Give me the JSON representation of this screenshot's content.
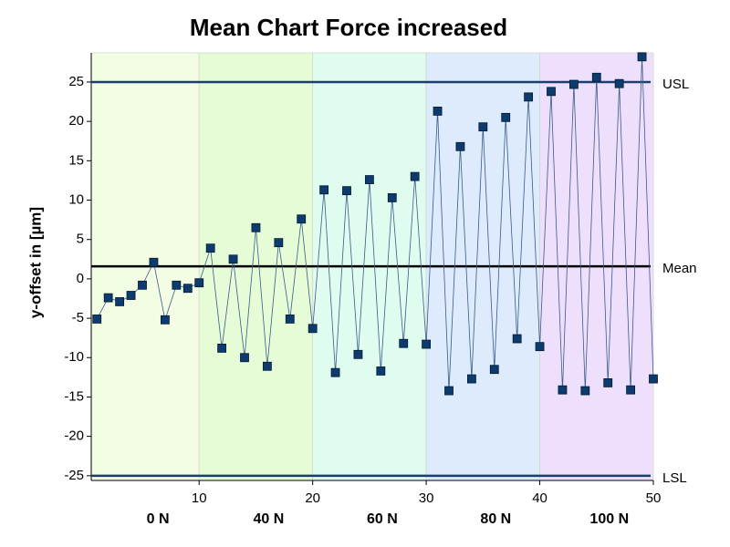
{
  "chart_data": {
    "type": "line",
    "title": "Mean Chart Force increased",
    "y_label": "y-offset  in [µm]",
    "x": [
      1,
      2,
      3,
      4,
      5,
      6,
      7,
      8,
      9,
      10,
      11,
      12,
      13,
      14,
      15,
      16,
      17,
      18,
      19,
      20,
      21,
      22,
      23,
      24,
      25,
      26,
      27,
      28,
      29,
      30,
      31,
      32,
      33,
      34,
      35,
      36,
      37,
      38,
      39,
      40,
      41,
      42,
      43,
      44,
      45,
      46,
      47,
      48,
      49,
      50
    ],
    "values": [
      -5.1,
      -2.4,
      -2.9,
      -2.1,
      -0.8,
      2.1,
      -5.2,
      -0.8,
      -1.2,
      -0.5,
      3.9,
      -8.8,
      2.5,
      -10.0,
      6.5,
      -11.1,
      4.6,
      -5.1,
      7.6,
      -6.3,
      11.3,
      -11.9,
      11.2,
      -9.6,
      12.6,
      -11.7,
      10.3,
      -8.2,
      13.0,
      -8.3,
      21.3,
      -14.2,
      16.8,
      -12.7,
      19.3,
      -11.5,
      20.5,
      -7.6,
      23.1,
      -8.6,
      23.8,
      -14.1,
      24.7,
      -14.2,
      25.6,
      -13.2,
      24.8,
      -14.1,
      28.2,
      -12.7
    ],
    "color": "#0d3b6e",
    "xlim": [
      0.5,
      50
    ],
    "xticks": [
      10,
      20,
      30,
      40,
      50
    ],
    "ylim": [
      -25.6,
      28.7
    ],
    "yticks": [
      -25,
      -20,
      -15,
      -10,
      -5,
      0,
      5,
      10,
      15,
      20,
      25
    ],
    "bands": [
      {
        "label": "0 N",
        "range": [
          0,
          10
        ],
        "color": "#f3fde4"
      },
      {
        "label": "40 N",
        "range": [
          10,
          20
        ],
        "color": "#e6fcd6"
      },
      {
        "label": "60 N",
        "range": [
          20,
          30
        ],
        "color": "#dffcee"
      },
      {
        "label": "80 N",
        "range": [
          30,
          40
        ],
        "color": "#ddebfc"
      },
      {
        "label": "100 N",
        "range": [
          40,
          50
        ],
        "color": "#eee0fc"
      }
    ],
    "limits": [
      {
        "label": "USL",
        "value": 25,
        "color": "#1a3f6e"
      },
      {
        "label": "Mean",
        "value": 1.6,
        "color": "#000000"
      },
      {
        "label": "LSL",
        "value": -25,
        "color": "#1a3f6e"
      }
    ]
  }
}
